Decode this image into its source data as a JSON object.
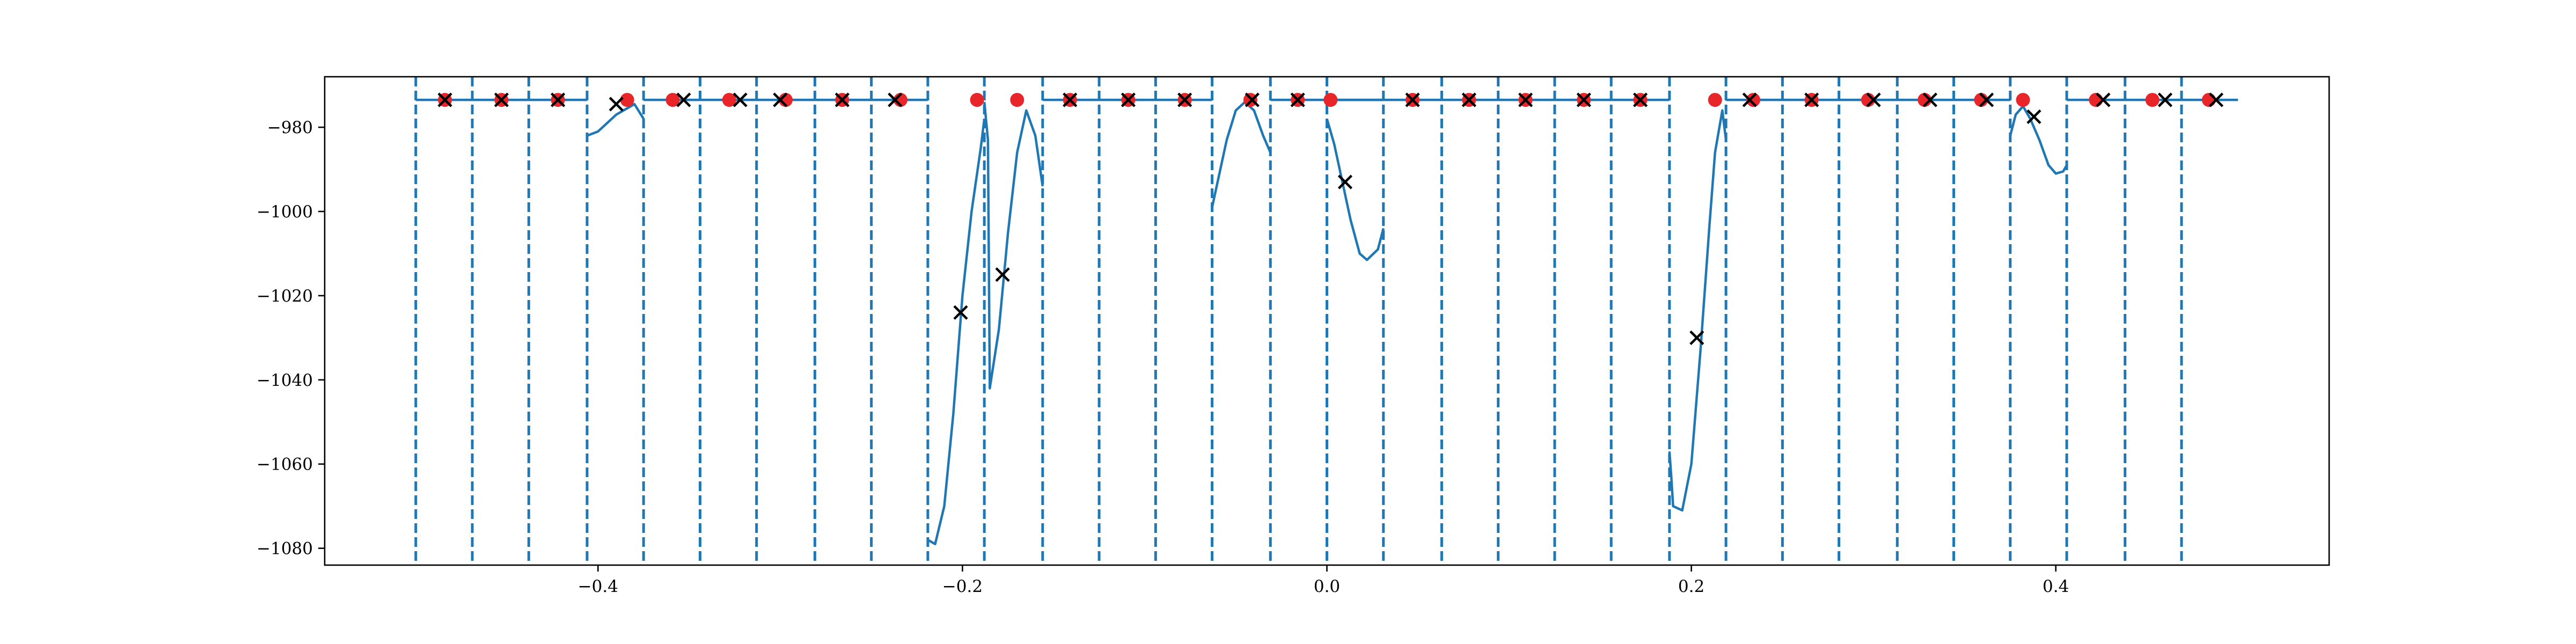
{
  "chart_data": {
    "type": "line",
    "title": "",
    "xlabel": "",
    "ylabel": "",
    "xlim": [
      -0.55,
      0.55
    ],
    "ylim": [
      -1084,
      -968
    ],
    "x_ticks": [
      -0.4,
      -0.2,
      0.0,
      0.2,
      0.4
    ],
    "x_tick_labels": [
      "−0.4",
      "−0.2",
      "0.0",
      "0.2",
      "0.4"
    ],
    "y_ticks": [
      -980,
      -1000,
      -1020,
      -1040,
      -1060,
      -1080
    ],
    "y_tick_labels": [
      "−980",
      "−1000",
      "−1020",
      "−1040",
      "−1060",
      "−1080"
    ],
    "grid": false,
    "colors": {
      "line": "#1f77b4",
      "vlines": "#1f77b4",
      "dots": "#e8262a",
      "crosses": "#000000"
    },
    "vertical_lines": [
      -0.5,
      -0.469,
      -0.438,
      -0.406,
      -0.375,
      -0.344,
      -0.313,
      -0.281,
      -0.25,
      -0.219,
      -0.188,
      -0.156,
      -0.125,
      -0.094,
      -0.063,
      -0.031,
      0.0,
      0.031,
      0.063,
      0.094,
      0.125,
      0.156,
      0.188,
      0.219,
      0.25,
      0.281,
      0.313,
      0.344,
      0.375,
      0.406,
      0.438,
      0.469
    ],
    "series": [
      {
        "style": "solid line",
        "segments": [
          [
            [
              -0.5,
              -973.5
            ],
            [
              -0.406,
              -973.5
            ]
          ],
          [
            [
              -0.406,
              -982
            ],
            [
              -0.4,
              -981
            ],
            [
              -0.39,
              -977
            ],
            [
              -0.38,
              -974.5
            ],
            [
              -0.375,
              -978
            ]
          ],
          [
            [
              -0.375,
              -973.5
            ],
            [
              -0.219,
              -973.5
            ]
          ],
          [
            [
              -0.219,
              -1078
            ],
            [
              -0.215,
              -1079
            ],
            [
              -0.21,
              -1070
            ],
            [
              -0.205,
              -1048
            ],
            [
              -0.2,
              -1020
            ],
            [
              -0.195,
              -1000
            ],
            [
              -0.19,
              -985
            ],
            [
              -0.188,
              -978
            ]
          ],
          [
            [
              -0.188,
              -974
            ],
            [
              -0.186,
              -983
            ],
            [
              -0.185,
              -1042
            ],
            [
              -0.18,
              -1028
            ],
            [
              -0.175,
              -1005
            ],
            [
              -0.17,
              -986
            ],
            [
              -0.165,
              -976
            ],
            [
              -0.16,
              -982
            ],
            [
              -0.156,
              -994
            ]
          ],
          [
            [
              -0.156,
              -973.5
            ],
            [
              -0.063,
              -973.5
            ]
          ],
          [
            [
              -0.063,
              -999
            ],
            [
              -0.06,
              -993
            ],
            [
              -0.055,
              -983
            ],
            [
              -0.05,
              -976
            ],
            [
              -0.045,
              -974
            ],
            [
              -0.04,
              -976
            ],
            [
              -0.035,
              -982
            ],
            [
              -0.031,
              -986
            ]
          ],
          [
            [
              -0.031,
              -973.5
            ],
            [
              0.031,
              -973.5
            ]
          ],
          [
            [
              0.031,
              -1004
            ],
            [
              0.028,
              -1009
            ],
            [
              0.022,
              -1011.5
            ],
            [
              0.018,
              -1010
            ],
            [
              0.013,
              -1002
            ],
            [
              0.008,
              -992
            ],
            [
              0.004,
              -984
            ],
            [
              0.0,
              -978
            ]
          ],
          [
            [
              0.0,
              -973.5
            ],
            [
              0.188,
              -973.5
            ]
          ],
          [
            [
              0.188,
              -1057
            ],
            [
              0.189,
              -1063
            ],
            [
              0.19,
              -1070
            ],
            [
              0.195,
              -1071
            ],
            [
              0.2,
              -1060
            ],
            [
              0.205,
              -1033
            ],
            [
              0.21,
              -1003
            ],
            [
              0.213,
              -986
            ],
            [
              0.217,
              -976
            ],
            [
              0.219,
              -983
            ]
          ],
          [
            [
              0.219,
              -973.5
            ],
            [
              0.375,
              -973.5
            ]
          ],
          [
            [
              0.375,
              -982
            ],
            [
              0.378,
              -977
            ],
            [
              0.382,
              -975
            ],
            [
              0.386,
              -978
            ],
            [
              0.391,
              -983
            ],
            [
              0.396,
              -989
            ],
            [
              0.4,
              -991
            ],
            [
              0.404,
              -990.5
            ],
            [
              0.406,
              -989
            ]
          ],
          [
            [
              0.406,
              -973.5
            ],
            [
              0.5,
              -973.5
            ]
          ]
        ]
      },
      {
        "style": "red dots",
        "x": [
          -0.484,
          -0.453,
          -0.422,
          -0.384,
          -0.359,
          -0.328,
          -0.297,
          -0.266,
          -0.234,
          -0.192,
          -0.17,
          -0.141,
          -0.109,
          -0.078,
          -0.042,
          -0.016,
          0.002,
          0.047,
          0.078,
          0.109,
          0.141,
          0.172,
          0.213,
          0.234,
          0.266,
          0.297,
          0.328,
          0.359,
          0.382,
          0.422,
          0.453,
          0.484
        ],
        "y": [
          -973.5,
          -973.5,
          -973.5,
          -973.5,
          -973.5,
          -973.5,
          -973.5,
          -973.5,
          -973.5,
          -973.5,
          -973.5,
          -973.5,
          -973.5,
          -973.5,
          -973.5,
          -973.5,
          -973.5,
          -973.5,
          -973.5,
          -973.5,
          -973.5,
          -973.5,
          -973.5,
          -973.5,
          -973.5,
          -973.5,
          -973.5,
          -973.5,
          -973.5,
          -973.5,
          -973.5,
          -973.5
        ]
      },
      {
        "style": "black crosses",
        "x": [
          -0.484,
          -0.453,
          -0.422,
          -0.39,
          -0.353,
          -0.322,
          -0.3,
          -0.266,
          -0.237,
          -0.201,
          -0.178,
          -0.141,
          -0.109,
          -0.078,
          -0.041,
          -0.016,
          0.01,
          0.047,
          0.078,
          0.109,
          0.141,
          0.172,
          0.203,
          0.232,
          0.266,
          0.3,
          0.331,
          0.362,
          0.388,
          0.426,
          0.46,
          0.488
        ],
        "y": [
          -973.5,
          -973.5,
          -973.5,
          -974.5,
          -973.5,
          -973.5,
          -973.5,
          -973.5,
          -973.5,
          -1024,
          -1015,
          -973.5,
          -973.5,
          -973.5,
          -973.5,
          -973.5,
          -993,
          -973.5,
          -973.5,
          -973.5,
          -973.5,
          -973.5,
          -1030,
          -973.5,
          -973.5,
          -973.5,
          -973.5,
          -973.5,
          -977.5,
          -973.5,
          -973.5,
          -973.5
        ]
      }
    ]
  }
}
